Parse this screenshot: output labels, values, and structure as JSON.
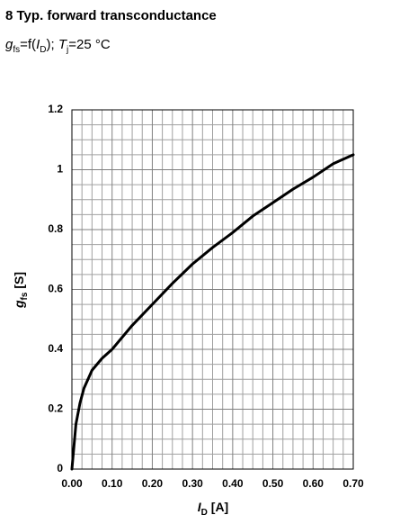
{
  "chart_data": {
    "type": "line",
    "title": "8 Typ. forward transconductance",
    "subtitle": [
      "g",
      "fs",
      "=f(",
      "I",
      "D",
      "); ",
      "T",
      "j",
      "=25 °C"
    ],
    "x_label": [
      "I",
      "D",
      " [A]"
    ],
    "y_label": [
      "g",
      "fs",
      " [S]"
    ],
    "x": [
      0,
      0.01,
      0.02,
      0.03,
      0.05,
      0.075,
      0.1,
      0.15,
      0.2,
      0.25,
      0.3,
      0.35,
      0.4,
      0.45,
      0.5,
      0.55,
      0.6,
      0.65,
      0.7
    ],
    "series": [
      {
        "color": "#000000",
        "values": [
          0,
          0.15,
          0.22,
          0.27,
          0.33,
          0.37,
          0.4,
          0.48,
          0.55,
          0.62,
          0.685,
          0.74,
          0.79,
          0.845,
          0.89,
          0.935,
          0.975,
          1.02,
          1.05
        ]
      }
    ],
    "xlim": [
      0,
      0.7
    ],
    "ylim": [
      0,
      1.2
    ],
    "xticks": [
      {
        "value": 0,
        "label": "0.00"
      },
      {
        "value": 0.1,
        "label": "0.10"
      },
      {
        "value": 0.2,
        "label": "0.20"
      },
      {
        "value": 0.3,
        "label": "0.30"
      },
      {
        "value": 0.4,
        "label": "0.40"
      },
      {
        "value": 0.5,
        "label": "0.50"
      },
      {
        "value": 0.6,
        "label": "0.60"
      },
      {
        "value": 0.7,
        "label": "0.70"
      }
    ],
    "yticks": [
      0,
      0.2,
      0.4,
      0.6,
      0.8,
      1,
      1.2
    ],
    "grid": true,
    "minor_divisions": 4
  }
}
